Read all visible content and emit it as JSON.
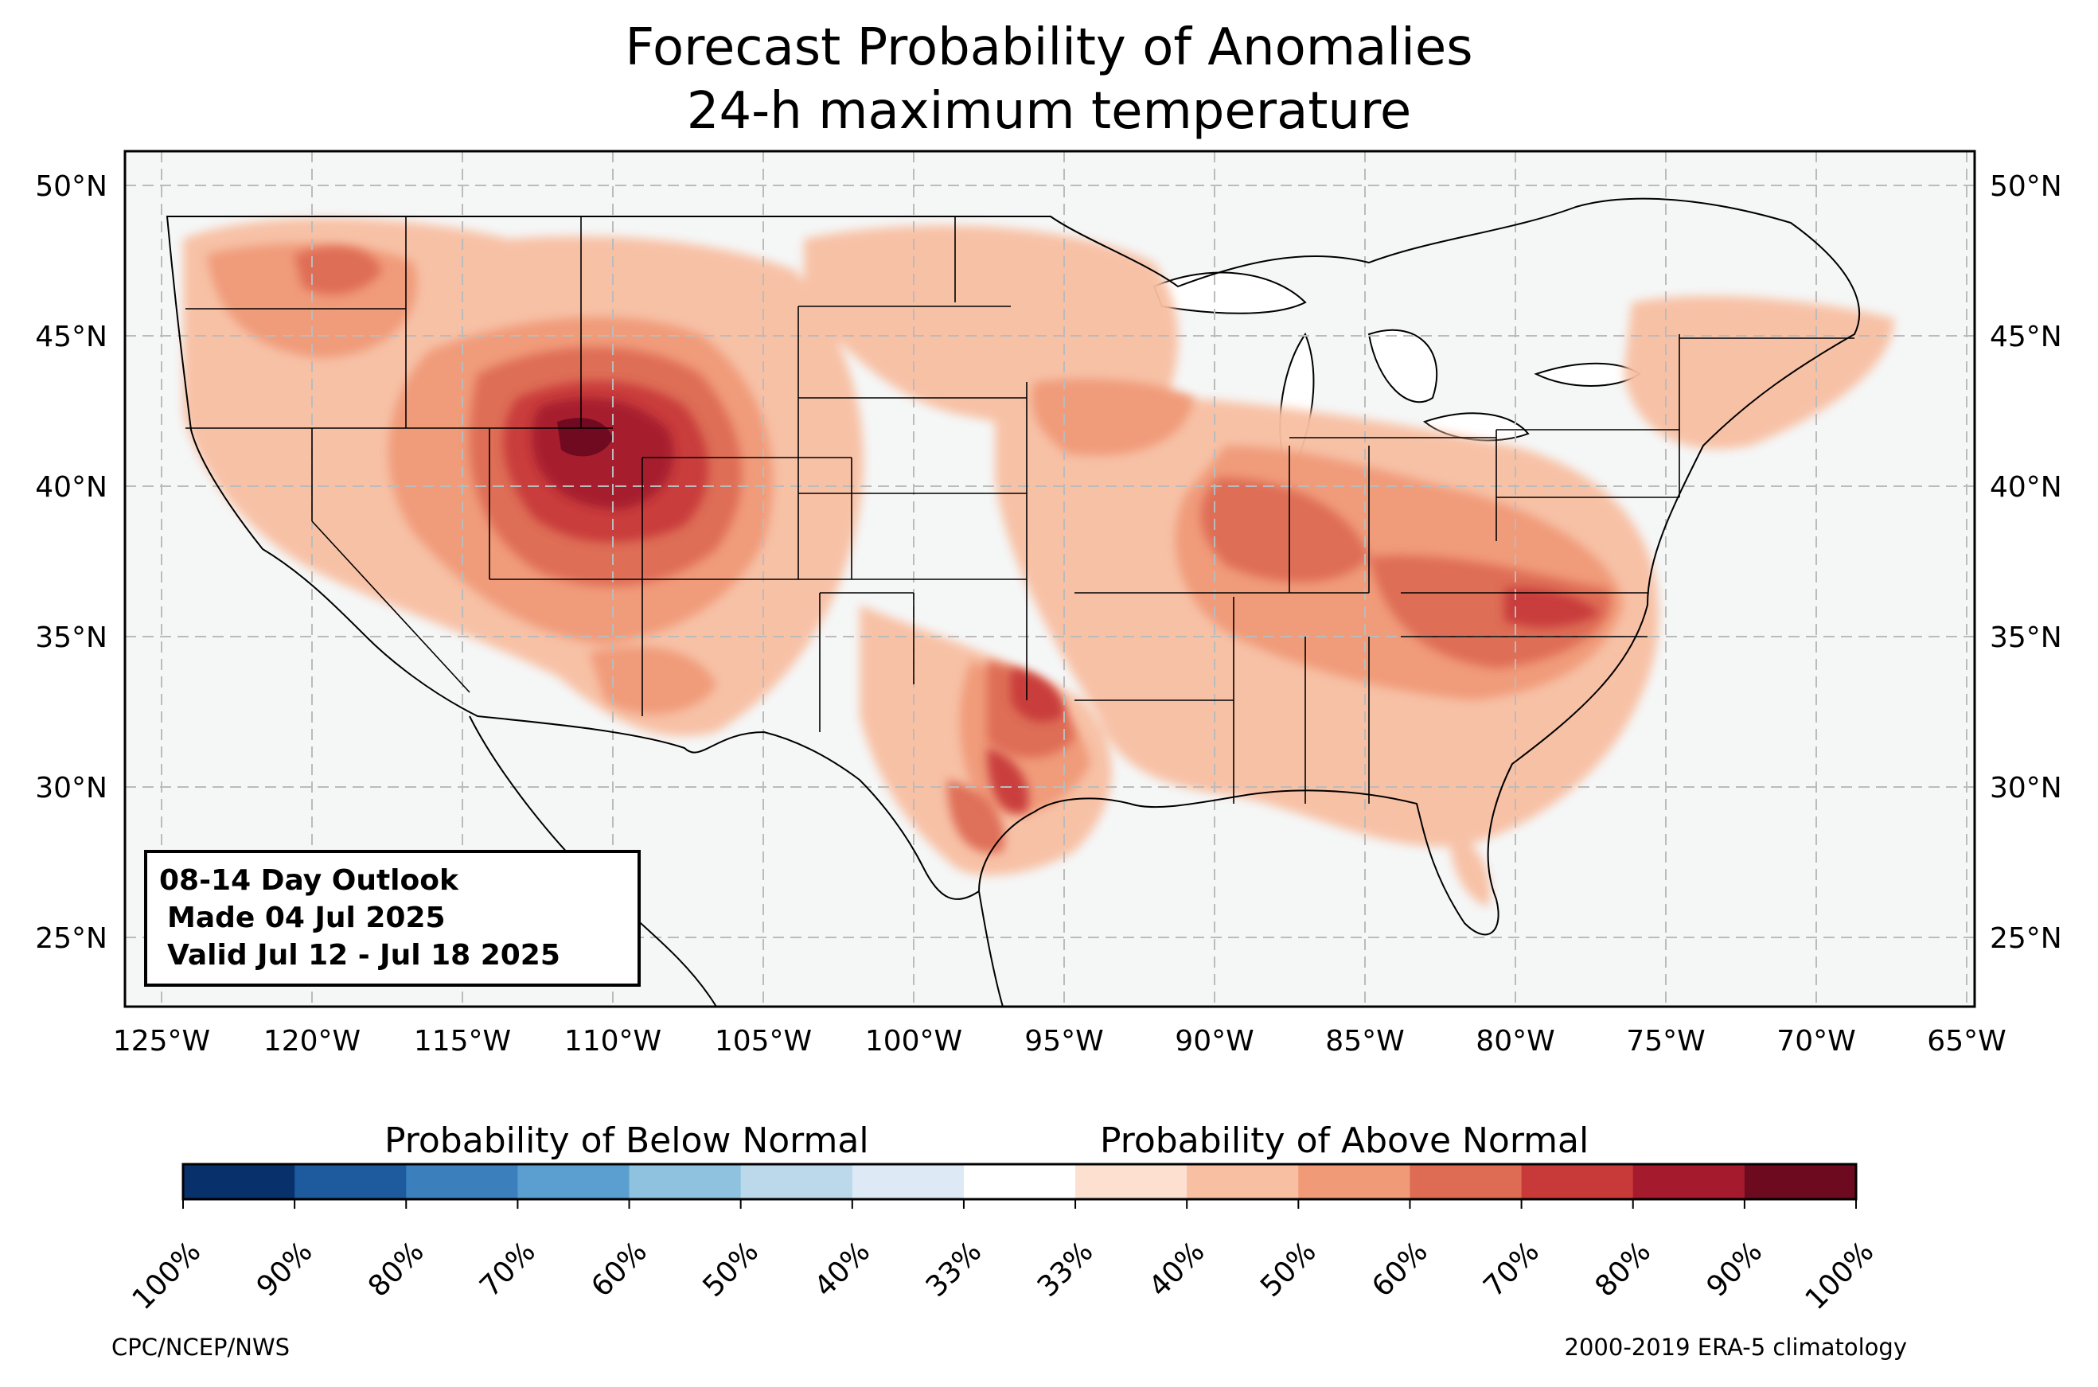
{
  "title": {
    "line1": "Forecast Probability of Anomalies",
    "line2": "24-h maximum temperature"
  },
  "outlook_box": {
    "line1": "08-14 Day Outlook",
    "line2": "Made 04 Jul 2025",
    "line3": "Valid Jul 12 - Jul 18 2025"
  },
  "latitude_labels": [
    "50°N",
    "45°N",
    "40°N",
    "35°N",
    "30°N",
    "25°N"
  ],
  "longitude_labels": [
    "125°W",
    "120°W",
    "115°W",
    "110°W",
    "105°W",
    "100°W",
    "95°W",
    "90°W",
    "85°W",
    "80°W",
    "75°W",
    "70°W",
    "65°W"
  ],
  "colorbar": {
    "below_label": "Probability of Below Normal",
    "above_label": "Probability of Above Normal",
    "tick_labels": [
      "100%",
      "90%",
      "80%",
      "70%",
      "60%",
      "50%",
      "40%",
      "33%",
      "33%",
      "40%",
      "50%",
      "60%",
      "70%",
      "80%",
      "90%",
      "100%"
    ],
    "colors": [
      "#08306b",
      "#1d5a9e",
      "#3b7fbc",
      "#5a9fcf",
      "#8fc2de",
      "#bcd8eb",
      "#dde9f4",
      "#ffffff",
      "#fde0d0",
      "#f8bfa2",
      "#f09a78",
      "#de6c54",
      "#c83a3a",
      "#a51a2d",
      "#6d0a20"
    ]
  },
  "footer": {
    "left": "CPC/NCEP/NWS",
    "right": "2000-2019 ERA-5 climatology"
  },
  "map_colors": {
    "land": "#f5f7f7",
    "above_40": "#f8bfa2",
    "above_50": "#f09a78",
    "above_60": "#de6c54",
    "above_70": "#c83a3a",
    "above_80": "#a51a2d",
    "above_90": "#6d0a20"
  }
}
